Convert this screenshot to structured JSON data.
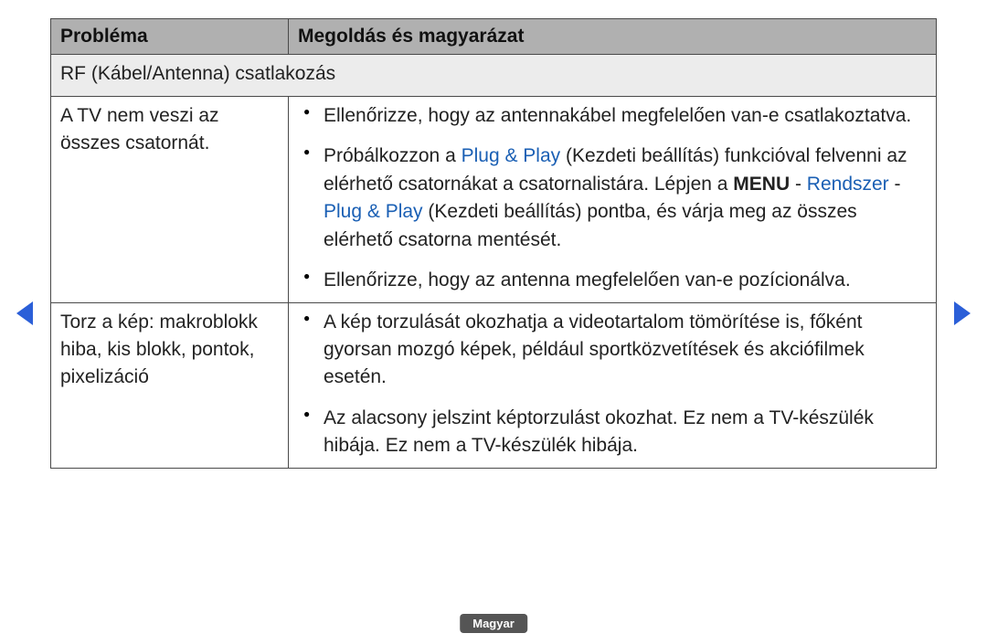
{
  "colors": {
    "header_bg": "#b0b0b0",
    "section_bg": "#ececec",
    "border": "#4a4a4a",
    "link": "#1a5fb4",
    "arrow": "#2b5fd8",
    "pill_bg": "#555555",
    "pill_text": "#ffffff"
  },
  "headers": {
    "problem": "Probléma",
    "solution": "Megoldás és magyarázat"
  },
  "section": "RF (Kábel/Antenna) csatlakozás",
  "rows": [
    {
      "problem": "A TV nem veszi az összes csatornát.",
      "bullets": {
        "b1": "Ellenőrizze, hogy az antennakábel megfelelően van-e csatlakoztatva.",
        "b2_pre": "Próbálkozzon a ",
        "b2_link1": "Plug & Play",
        "b2_mid1": " (Kezdeti beállítás) funkcióval felvenni az elérhető csatornákat a csatornalistára. Lépjen a ",
        "b2_menu": "MENU",
        "b2_sep1": " - ",
        "b2_link2": "Rendszer",
        "b2_sep2": " - ",
        "b2_link3": "Plug & Play",
        "b2_post": " (Kezdeti beállítás) pontba, és várja meg az összes elérhető csatorna mentését.",
        "b3": "Ellenőrizze, hogy az antenna megfelelően van-e pozícionálva."
      }
    },
    {
      "problem": "Torz a kép: makroblokk hiba, kis blokk, pontok, pixelizáció",
      "bullets": {
        "b1": "A kép torzulását okozhatja a videotartalom tömörítése is, főként gyorsan mozgó képek, például sportközvetítések és akciófilmek esetén.",
        "b2": "Az alacsony jelszint képtorzulást okozhat. Ez nem a TV-készülék hibája. Ez nem a TV-készülék  hibája."
      }
    }
  ],
  "language_label": "Magyar"
}
